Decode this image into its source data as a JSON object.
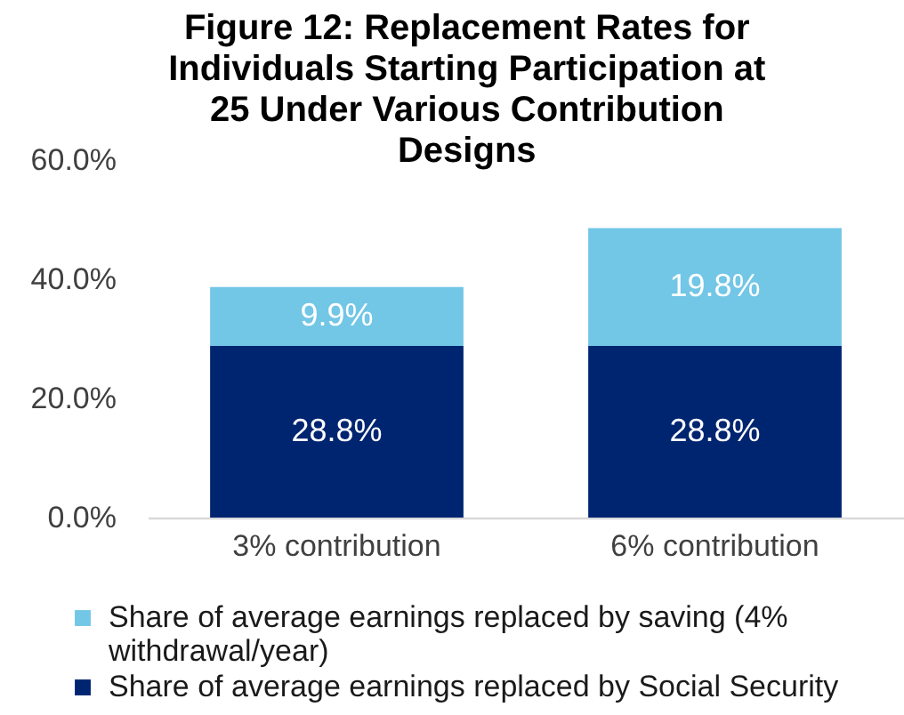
{
  "chart_data": {
    "type": "bar",
    "title": "Figure 12: Replacement Rates for Individuals Starting Participation at 25 Under Various Contribution Designs",
    "categories": [
      "3% contribution",
      "6% contribution"
    ],
    "series": [
      {
        "name": "Share of average earnings replaced by Social Security",
        "color": "#002570",
        "values": [
          28.8,
          28.8
        ],
        "value_labels": [
          "28.8%",
          "28.8%"
        ]
      },
      {
        "name": "Share of average earnings replaced by saving (4% withdrawal/year)",
        "color": "#72C6E6",
        "values": [
          9.9,
          19.8
        ],
        "value_labels": [
          "9.9%",
          "19.8%"
        ]
      }
    ],
    "stacked": true,
    "ylim": [
      0,
      60
    ],
    "yticks": [
      {
        "value": 0,
        "label": "0.0%"
      },
      {
        "value": 20,
        "label": "20.0%"
      },
      {
        "value": 40,
        "label": "40.0%"
      },
      {
        "value": 60,
        "label": "60.0%"
      }
    ],
    "legend": "bottom"
  }
}
